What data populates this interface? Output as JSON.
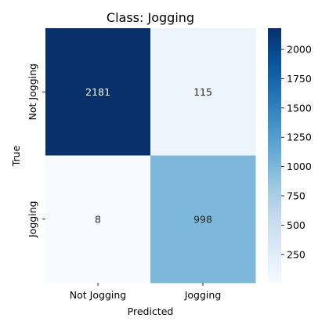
{
  "chart_data": {
    "type": "heatmap",
    "title": "Class: Jogging",
    "xlabel": "Predicted",
    "ylabel": "True",
    "x_categories": [
      "Not Jogging",
      "Jogging"
    ],
    "y_categories": [
      "Not Jogging",
      "Jogging"
    ],
    "values": [
      [
        2181,
        115
      ],
      [
        8,
        998
      ]
    ],
    "colormap": "Blues",
    "colorbar": {
      "min": 8,
      "max": 2181,
      "ticks": [
        250,
        500,
        750,
        1000,
        1250,
        1500,
        1750,
        2000
      ]
    }
  },
  "colors": {
    "blues_ramp": [
      "#f7fbff",
      "#deebf7",
      "#c6dbef",
      "#9ecae1",
      "#6baed6",
      "#4292c6",
      "#2171b5",
      "#08519c",
      "#08306b"
    ]
  }
}
